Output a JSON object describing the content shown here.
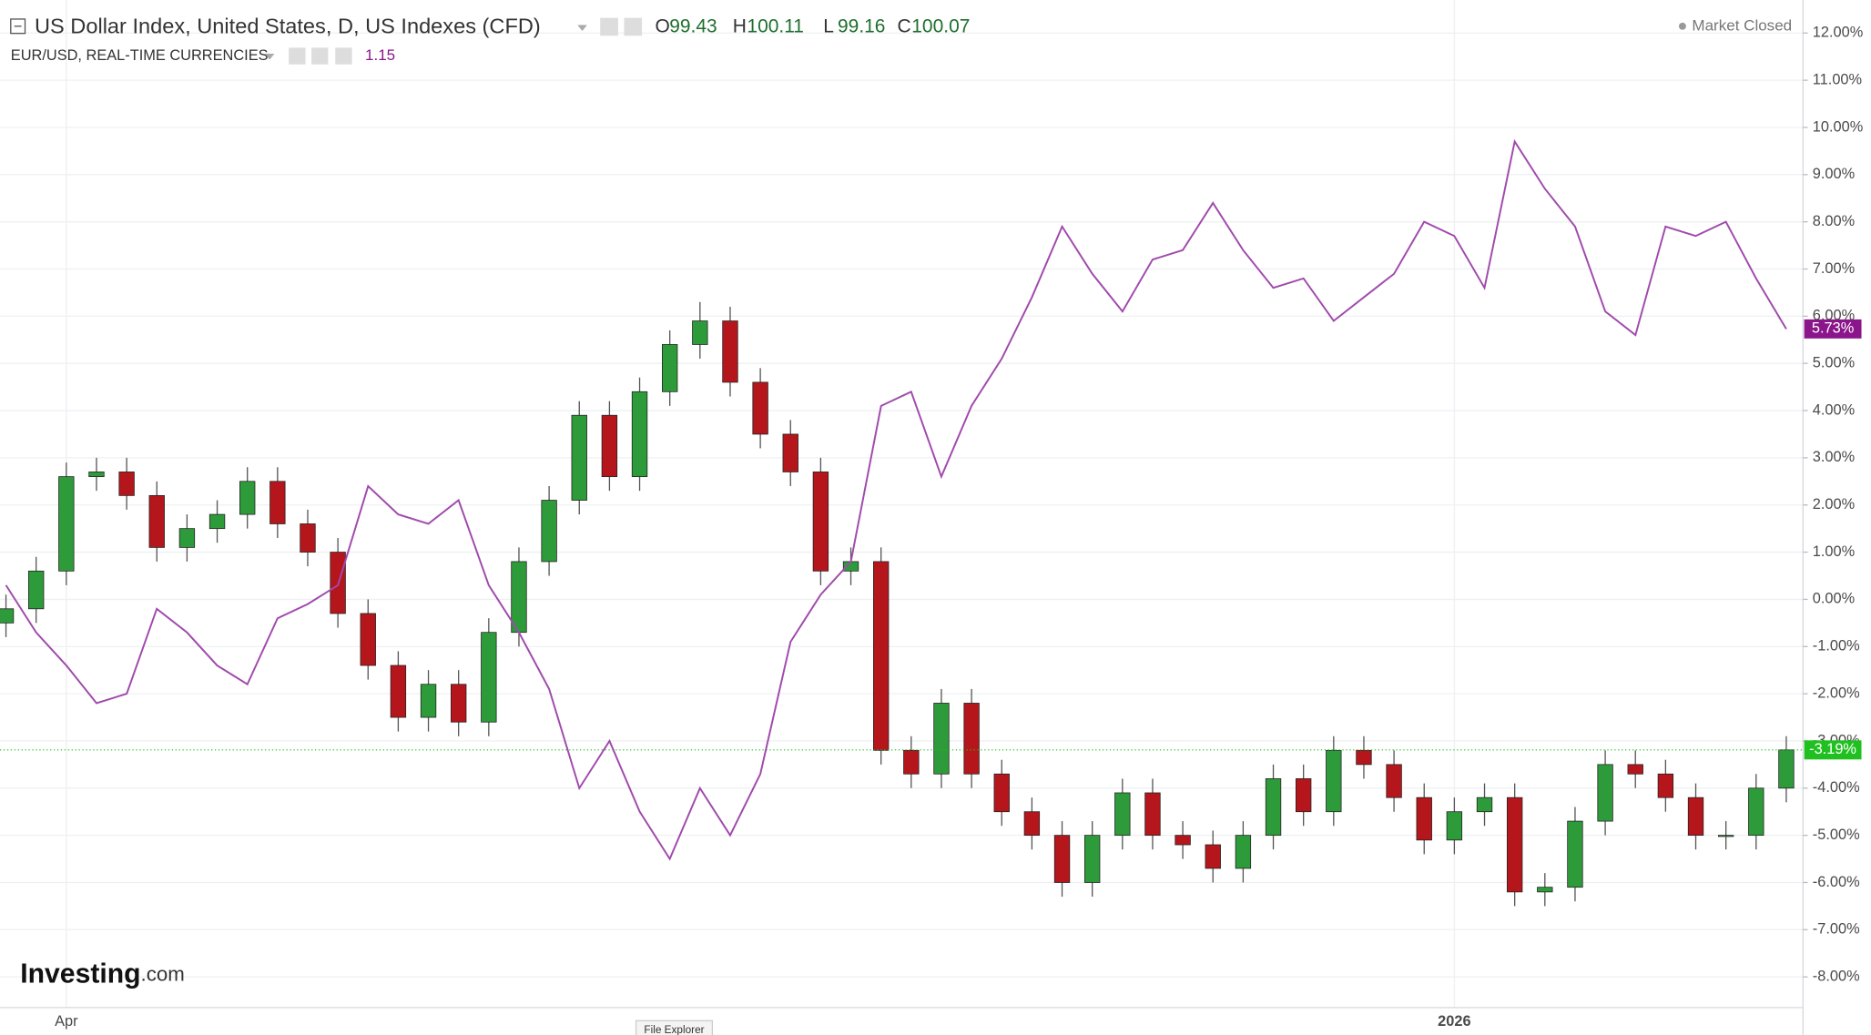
{
  "chart_data": {
    "type": "candlestick",
    "title": "US Dollar Index, United States, D, US Indexes (CFD)",
    "ohlc": [
      {
        "label": "O",
        "value": 99.43
      },
      {
        "label": "H",
        "value": 100.11
      },
      {
        "label": "L",
        "value": 99.16
      },
      {
        "label": "C",
        "value": 100.07
      }
    ],
    "status": "Market Closed",
    "logo": [
      "Investing",
      ".com"
    ],
    "tooltip": "File Explorer",
    "categories": [
      null,
      null,
      "Apr",
      null,
      null,
      null,
      null,
      null,
      null,
      null,
      null,
      null,
      null,
      null,
      null,
      null,
      null,
      null,
      null,
      null,
      null,
      null,
      null,
      null,
      null,
      null,
      null,
      null,
      null,
      null,
      null,
      null,
      null,
      null,
      null,
      null,
      null,
      null,
      null,
      null,
      null,
      null,
      null,
      null,
      null,
      null,
      null,
      null,
      "2026",
      null,
      null,
      null,
      null,
      null,
      null,
      null,
      null,
      null,
      null,
      null
    ],
    "ylim": [
      -8.65,
      12.7
    ],
    "yticks": [
      {
        "value": 12,
        "label": "12.00%"
      },
      {
        "value": 11,
        "label": "11.00%"
      },
      {
        "value": 10,
        "label": "10.00%"
      },
      {
        "value": 9,
        "label": "9.00%"
      },
      {
        "value": 8,
        "label": "8.00%"
      },
      {
        "value": 7,
        "label": "7.00%"
      },
      {
        "value": 6,
        "label": "6.00%"
      },
      {
        "value": 5,
        "label": "5.00%"
      },
      {
        "value": 4,
        "label": "4.00%"
      },
      {
        "value": 3,
        "label": "3.00%"
      },
      {
        "value": 2,
        "label": "2.00%"
      },
      {
        "value": 1,
        "label": "1.00%"
      },
      {
        "value": 0,
        "label": "0.00%"
      },
      {
        "value": -1,
        "label": "-1.00%"
      },
      {
        "value": -2,
        "label": "-2.00%"
      },
      {
        "value": -3,
        "label": "-3.00%"
      },
      {
        "value": -4,
        "label": "-4.00%"
      },
      {
        "value": -5,
        "label": "-5.00%"
      },
      {
        "value": -6,
        "label": "-6.00%"
      },
      {
        "value": -7,
        "label": "-7.00%"
      },
      {
        "value": -8,
        "label": "-8.00%"
      }
    ],
    "grid": true,
    "series": [
      {
        "name": "US Dollar Index, United States, D, US Indexes (CFD)",
        "type": "candlestick",
        "color": "#2e9b3a",
        "down_color": "#b5161c",
        "last_color": "#20c020",
        "last_label": "-3.19%",
        "open": [
          -0.5,
          -0.2,
          0.6,
          2.6,
          2.7,
          2.2,
          1.1,
          1.5,
          1.8,
          2.5,
          1.6,
          1.0,
          -0.3,
          -1.4,
          -2.5,
          -1.8,
          -2.6,
          -0.7,
          0.8,
          2.1,
          3.9,
          2.6,
          4.4,
          5.4,
          5.9,
          4.6,
          3.5,
          2.7,
          0.6,
          0.8,
          -3.2,
          -3.7,
          -2.2,
          -3.7,
          -4.5,
          -5.0,
          -6.0,
          -5.0,
          -4.1,
          -5.0,
          -5.2,
          -5.7,
          -5.0,
          -3.8,
          -4.5,
          -3.2,
          -3.5,
          -4.2,
          -5.1,
          -4.5,
          -4.2,
          -6.2,
          -6.1,
          -4.7,
          -3.5,
          -3.7,
          -4.2,
          -5.0,
          -5.0,
          -4.0
        ],
        "high": [
          0.1,
          0.9,
          2.9,
          3.0,
          3.0,
          2.5,
          1.8,
          2.1,
          2.8,
          2.8,
          1.9,
          1.3,
          0.0,
          -1.1,
          -1.5,
          -1.5,
          -0.4,
          1.1,
          2.4,
          4.2,
          4.2,
          4.7,
          5.7,
          6.3,
          6.2,
          4.9,
          3.8,
          3.0,
          1.1,
          1.1,
          -2.9,
          -1.9,
          -1.9,
          -3.4,
          -4.2,
          -4.7,
          -4.7,
          -3.8,
          -3.8,
          -4.7,
          -4.9,
          -4.7,
          -3.5,
          -3.5,
          -2.9,
          -2.9,
          -3.2,
          -3.9,
          -4.2,
          -3.9,
          -3.9,
          -5.8,
          -4.4,
          -3.2,
          -3.2,
          -3.4,
          -3.9,
          -4.7,
          -3.7,
          -2.9
        ],
        "low": [
          -0.8,
          -0.5,
          0.3,
          2.3,
          1.9,
          0.8,
          0.8,
          1.2,
          1.5,
          1.3,
          0.7,
          -0.6,
          -1.7,
          -2.8,
          -2.8,
          -2.9,
          -2.9,
          -1.0,
          0.5,
          1.8,
          2.3,
          2.3,
          4.1,
          5.1,
          4.3,
          3.2,
          2.4,
          0.3,
          0.3,
          -3.5,
          -4.0,
          -4.0,
          -4.0,
          -4.8,
          -5.3,
          -6.3,
          -6.3,
          -5.3,
          -5.3,
          -5.5,
          -6.0,
          -6.0,
          -5.3,
          -4.8,
          -4.8,
          -3.8,
          -4.5,
          -5.4,
          -5.4,
          -4.8,
          -6.5,
          -6.5,
          -6.4,
          -5.0,
          -4.0,
          -4.5,
          -5.3,
          -5.3,
          -5.3,
          -4.3
        ],
        "close": [
          -0.2,
          0.6,
          2.6,
          2.7,
          2.2,
          1.1,
          1.5,
          1.8,
          2.5,
          1.6,
          1.0,
          -0.3,
          -1.4,
          -2.5,
          -1.8,
          -2.6,
          -0.7,
          0.8,
          2.1,
          3.9,
          2.6,
          4.4,
          5.4,
          5.9,
          4.6,
          3.5,
          2.7,
          0.6,
          0.8,
          -3.2,
          -3.7,
          -2.2,
          -3.7,
          -4.5,
          -5.0,
          -6.0,
          -5.0,
          -4.1,
          -5.0,
          -5.2,
          -5.7,
          -5.0,
          -3.8,
          -4.5,
          -3.2,
          -3.5,
          -4.2,
          -5.1,
          -4.5,
          -4.2,
          -6.2,
          -6.1,
          -4.7,
          -3.5,
          -3.7,
          -4.2,
          -5.0,
          -5.0,
          -4.0,
          -3.19
        ]
      },
      {
        "name": "EUR/USD, REAL-TIME CURRENCIES",
        "type": "line",
        "color": "#a04aac",
        "last_color": "#8b168b",
        "last_label": "5.73%",
        "price": 1.15,
        "values": [
          0.3,
          -0.7,
          -1.4,
          -2.2,
          -2.0,
          -0.2,
          -0.7,
          -1.4,
          -1.8,
          -0.4,
          -0.1,
          0.3,
          2.4,
          1.8,
          1.6,
          2.1,
          0.3,
          -0.7,
          -1.9,
          -4.0,
          -3.0,
          -4.5,
          -5.5,
          -4.0,
          -5.0,
          -3.7,
          -0.9,
          0.1,
          0.8,
          4.1,
          4.4,
          2.6,
          4.1,
          5.1,
          6.4,
          7.9,
          6.9,
          6.1,
          7.2,
          7.4,
          8.4,
          7.4,
          6.6,
          6.8,
          5.9,
          6.4,
          6.9,
          8.0,
          7.7,
          6.6,
          9.7,
          8.7,
          7.9,
          6.1,
          5.6,
          7.9,
          7.7,
          8.0,
          6.8,
          5.73
        ]
      }
    ]
  }
}
